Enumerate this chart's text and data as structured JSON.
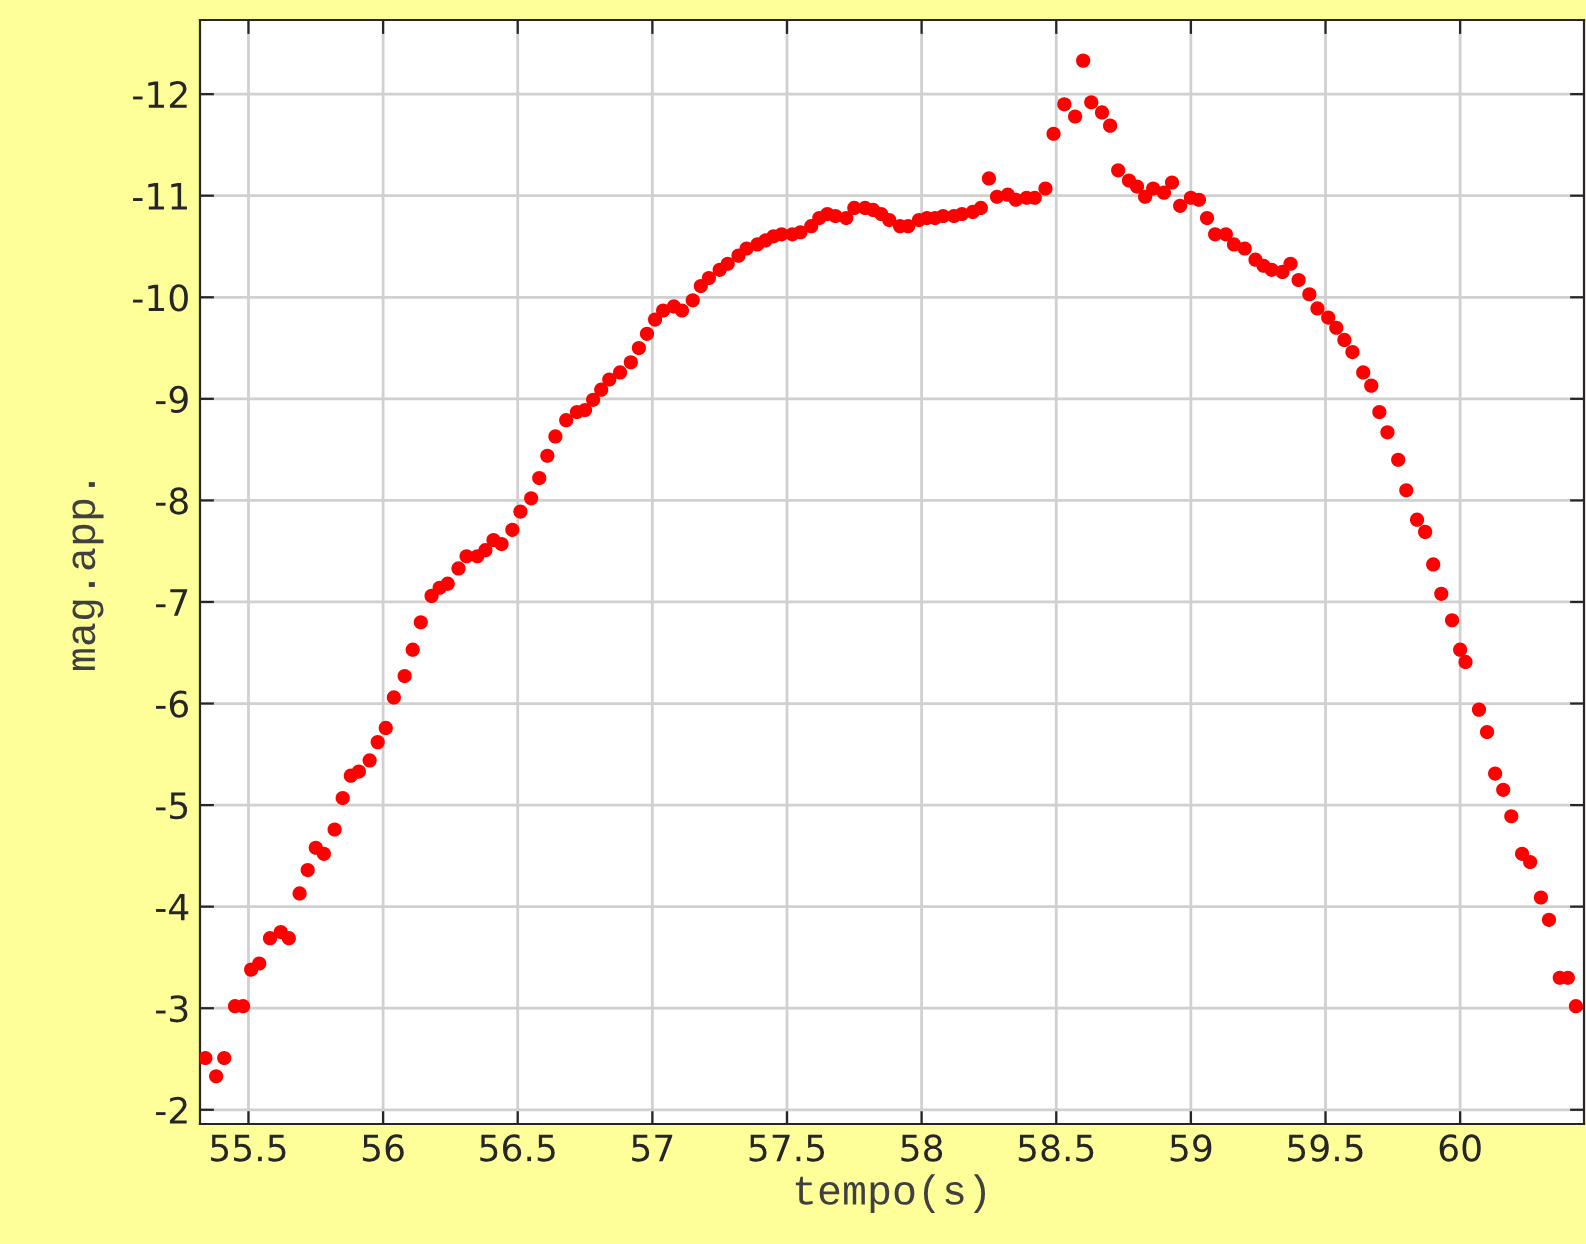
{
  "chart_data": {
    "type": "scatter",
    "xlabel": "tempo(s)",
    "ylabel": "mag.app.",
    "xlim": [
      55.32,
      60.46
    ],
    "ylim": [
      -1.86,
      -12.73
    ],
    "xticks": [
      55.5,
      56,
      56.5,
      57,
      57.5,
      58,
      58.5,
      59,
      59.5,
      60
    ],
    "yticks": [
      -2,
      -3,
      -4,
      -5,
      -6,
      -7,
      -8,
      -9,
      -10,
      -11,
      -12
    ],
    "grid": true,
    "marker": "circle",
    "series": [
      {
        "color": "#ff0000",
        "x": [
          55.34,
          55.38,
          55.41,
          55.45,
          55.48,
          55.51,
          55.54,
          55.58,
          55.62,
          55.65,
          55.69,
          55.72,
          55.75,
          55.78,
          55.82,
          55.85,
          55.88,
          55.91,
          55.95,
          55.98,
          56.01,
          56.04,
          56.08,
          56.11,
          56.14,
          56.18,
          56.21,
          56.24,
          56.28,
          56.31,
          56.35,
          56.38,
          56.41,
          56.44,
          56.48,
          56.51,
          56.55,
          56.58,
          56.61,
          56.64,
          56.68,
          56.72,
          56.75,
          56.78,
          56.81,
          56.84,
          56.88,
          56.92,
          56.95,
          56.98,
          57.01,
          57.04,
          57.08,
          57.11,
          57.15,
          57.18,
          57.21,
          57.25,
          57.28,
          57.32,
          57.35,
          57.39,
          57.42,
          57.45,
          57.48,
          57.52,
          57.55,
          57.59,
          57.62,
          57.65,
          57.68,
          57.72,
          57.75,
          57.79,
          57.82,
          57.85,
          57.88,
          57.92,
          57.95,
          57.99,
          58.02,
          58.05,
          58.08,
          58.12,
          58.15,
          58.19,
          58.22,
          58.25,
          58.28,
          58.32,
          58.35,
          58.39,
          58.42,
          58.46,
          58.49,
          58.53,
          58.57,
          58.6,
          58.63,
          58.67,
          58.7,
          58.73,
          58.77,
          58.8,
          58.83,
          58.86,
          58.9,
          58.93,
          58.96,
          59.0,
          59.03,
          59.06,
          59.09,
          59.13,
          59.16,
          59.2,
          59.24,
          59.27,
          59.3,
          59.34,
          59.37,
          59.4,
          59.44,
          59.47,
          59.51,
          59.54,
          59.57,
          59.6,
          59.64,
          59.67,
          59.7,
          59.73,
          59.77,
          59.8,
          59.84,
          59.87,
          59.9,
          59.93,
          59.97,
          60.0,
          60.02,
          60.07,
          60.1,
          60.13,
          60.16,
          60.19,
          60.23,
          60.26,
          60.3,
          60.33,
          60.37,
          60.4,
          60.43
        ],
        "values": [
          -2.51,
          -2.33,
          -2.51,
          -3.02,
          -3.02,
          -3.38,
          -3.44,
          -3.69,
          -3.75,
          -3.69,
          -4.13,
          -4.36,
          -4.58,
          -4.52,
          -4.76,
          -5.07,
          -5.29,
          -5.33,
          -5.44,
          -5.62,
          -5.76,
          -6.06,
          -6.27,
          -6.53,
          -6.8,
          -7.06,
          -7.14,
          -7.18,
          -7.33,
          -7.45,
          -7.45,
          -7.51,
          -7.61,
          -7.57,
          -7.71,
          -7.89,
          -8.02,
          -8.22,
          -8.44,
          -8.63,
          -8.79,
          -8.87,
          -8.89,
          -8.99,
          -9.09,
          -9.19,
          -9.26,
          -9.36,
          -9.5,
          -9.64,
          -9.78,
          -9.87,
          -9.91,
          -9.87,
          -9.97,
          -10.11,
          -10.19,
          -10.27,
          -10.33,
          -10.41,
          -10.48,
          -10.52,
          -10.56,
          -10.6,
          -10.62,
          -10.62,
          -10.64,
          -10.7,
          -10.78,
          -10.82,
          -10.8,
          -10.78,
          -10.88,
          -10.88,
          -10.86,
          -10.82,
          -10.76,
          -10.7,
          -10.7,
          -10.76,
          -10.78,
          -10.78,
          -10.8,
          -10.8,
          -10.82,
          -10.84,
          -10.88,
          -11.17,
          -10.99,
          -11.01,
          -10.96,
          -10.98,
          -10.98,
          -11.07,
          -11.61,
          -11.9,
          -11.78,
          -12.33,
          -11.92,
          -11.82,
          -11.69,
          -11.25,
          -11.15,
          -11.09,
          -10.99,
          -11.07,
          -11.03,
          -11.13,
          -10.9,
          -10.98,
          -10.96,
          -10.78,
          -10.62,
          -10.62,
          -10.52,
          -10.48,
          -10.37,
          -10.31,
          -10.27,
          -10.25,
          -10.33,
          -10.17,
          -10.03,
          -9.89,
          -9.8,
          -9.7,
          -9.58,
          -9.46,
          -9.26,
          -9.13,
          -8.87,
          -8.67,
          -8.4,
          -8.1,
          -7.81,
          -7.69,
          -7.37,
          -7.08,
          -6.82,
          -6.53,
          -6.41,
          -5.94,
          -5.72,
          -5.31,
          -5.15,
          -4.89,
          -4.52,
          -4.44,
          -4.09,
          -3.87,
          -3.3,
          -3.3,
          -3.02
        ]
      }
    ]
  }
}
